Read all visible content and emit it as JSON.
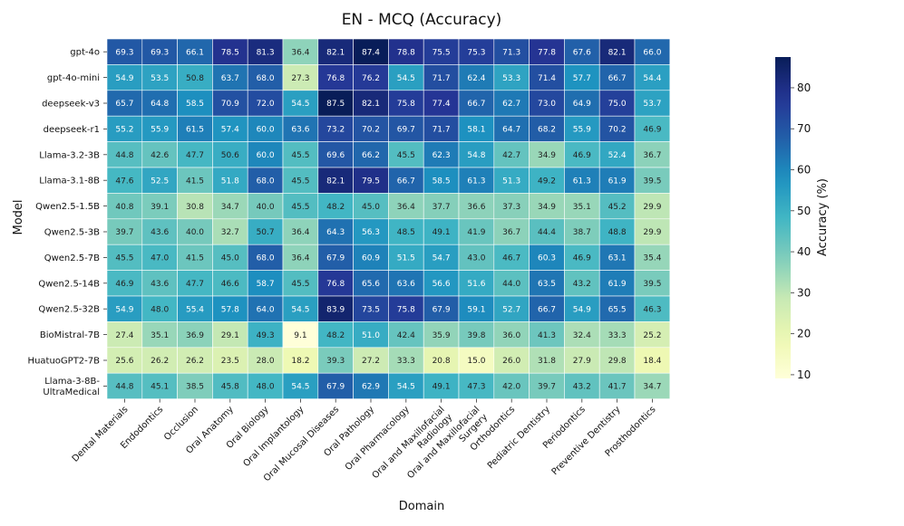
{
  "chart_data": {
    "type": "heatmap",
    "title": "EN - MCQ (Accuracy)",
    "xlabel": "Domain",
    "ylabel": "Model",
    "colorbar_label": "Accuracy (%)",
    "colorbar_range": [
      9.1,
      87.5
    ],
    "colorbar_ticks": [
      10,
      20,
      30,
      40,
      50,
      60,
      70,
      80
    ],
    "colormap": "YlGnBu",
    "rows": [
      "gpt-4o",
      "gpt-4o-mini",
      "deepseek-v3",
      "deepseek-r1",
      "Llama-3.2-3B",
      "Llama-3.1-8B",
      "Qwen2.5-1.5B",
      "Qwen2.5-3B",
      "Qwen2.5-7B",
      "Qwen2.5-14B",
      "Qwen2.5-32B",
      "BioMistral-7B",
      "HuatuoGPT2-7B",
      "Llama-3-8B-UltraMedical"
    ],
    "row_display": [
      [
        "gpt-4o"
      ],
      [
        "gpt-4o-mini"
      ],
      [
        "deepseek-v3"
      ],
      [
        "deepseek-r1"
      ],
      [
        "Llama-3.2-3B"
      ],
      [
        "Llama-3.1-8B"
      ],
      [
        "Qwen2.5-1.5B"
      ],
      [
        "Qwen2.5-3B"
      ],
      [
        "Qwen2.5-7B"
      ],
      [
        "Qwen2.5-14B"
      ],
      [
        "Qwen2.5-32B"
      ],
      [
        "BioMistral-7B"
      ],
      [
        "HuatuoGPT2-7B"
      ],
      [
        "Llama-3-8B-",
        "UltraMedical"
      ]
    ],
    "columns": [
      "Dental Materials",
      "Endodontics",
      "Occlusion",
      "Oral Anatomy",
      "Oral Biology",
      "Oral Implantology",
      "Oral Mucosal Diseases",
      "Oral Pathology",
      "Oral Pharmacology",
      "Oral and Maxillofacial Radiology",
      "Oral and Maxillofacial Surgery",
      "Orthodontics",
      "Pediatric Dentistry",
      "Periodontics",
      "Preventive Dentistry",
      "Prosthodontics"
    ],
    "column_display": [
      [
        "Dental Materials"
      ],
      [
        "Endodontics"
      ],
      [
        "Occlusion"
      ],
      [
        "Oral Anatomy"
      ],
      [
        "Oral Biology"
      ],
      [
        "Oral Implantology"
      ],
      [
        "Oral Mucosal Diseases"
      ],
      [
        "Oral Pathology"
      ],
      [
        "Oral Pharmacology"
      ],
      [
        "Oral and Maxillofacial",
        "Radiology"
      ],
      [
        "Oral and Maxillofacial",
        "Surgery"
      ],
      [
        "Orthodontics"
      ],
      [
        "Pediatric Dentistry"
      ],
      [
        "Periodontics"
      ],
      [
        "Preventive Dentistry"
      ],
      [
        "Prosthodontics"
      ]
    ],
    "values": [
      [
        69.3,
        69.3,
        66.1,
        78.5,
        81.3,
        36.4,
        82.1,
        87.4,
        78.8,
        75.5,
        75.3,
        71.3,
        77.8,
        67.6,
        82.1,
        66.0
      ],
      [
        54.9,
        53.5,
        50.8,
        63.7,
        68.0,
        27.3,
        76.8,
        76.2,
        54.5,
        71.7,
        62.4,
        53.3,
        71.4,
        57.7,
        66.7,
        54.4
      ],
      [
        65.7,
        64.8,
        58.5,
        70.9,
        72.0,
        54.5,
        87.5,
        82.1,
        75.8,
        77.4,
        66.7,
        62.7,
        73.0,
        64.9,
        75.0,
        53.7
      ],
      [
        55.2,
        55.9,
        61.5,
        57.4,
        60.0,
        63.6,
        73.2,
        70.2,
        69.7,
        71.7,
        58.1,
        64.7,
        68.2,
        55.9,
        70.2,
        46.9
      ],
      [
        44.8,
        42.6,
        47.7,
        50.6,
        60.0,
        45.5,
        69.6,
        66.2,
        45.5,
        62.3,
        54.8,
        42.7,
        34.9,
        46.9,
        52.4,
        36.7
      ],
      [
        47.6,
        52.5,
        41.5,
        51.8,
        68.0,
        45.5,
        82.1,
        79.5,
        66.7,
        58.5,
        61.3,
        51.3,
        49.2,
        61.3,
        61.9,
        39.5
      ],
      [
        40.8,
        39.1,
        30.8,
        34.7,
        40.0,
        45.5,
        48.2,
        45.0,
        36.4,
        37.7,
        36.6,
        37.3,
        34.9,
        35.1,
        45.2,
        29.9
      ],
      [
        39.7,
        43.6,
        40.0,
        32.7,
        50.7,
        36.4,
        64.3,
        56.3,
        48.5,
        49.1,
        41.9,
        36.7,
        44.4,
        38.7,
        48.8,
        29.9
      ],
      [
        45.5,
        47.0,
        41.5,
        45.0,
        68.0,
        36.4,
        67.9,
        60.9,
        51.5,
        54.7,
        43.0,
        46.7,
        60.3,
        46.9,
        63.1,
        35.4
      ],
      [
        46.9,
        43.6,
        47.7,
        46.6,
        58.7,
        45.5,
        76.8,
        65.6,
        63.6,
        56.6,
        51.6,
        44.0,
        63.5,
        43.2,
        61.9,
        39.5
      ],
      [
        54.9,
        48.0,
        55.4,
        57.8,
        64.0,
        54.5,
        83.9,
        73.5,
        75.8,
        67.9,
        59.1,
        52.7,
        66.7,
        54.9,
        65.5,
        46.3
      ],
      [
        27.4,
        35.1,
        36.9,
        29.1,
        49.3,
        9.1,
        48.2,
        51.0,
        42.4,
        35.9,
        39.8,
        36.0,
        41.3,
        32.4,
        33.3,
        25.2
      ],
      [
        25.6,
        26.2,
        26.2,
        23.5,
        28.0,
        18.2,
        39.3,
        27.2,
        33.3,
        20.8,
        15.0,
        26.0,
        31.8,
        27.9,
        29.8,
        18.4
      ],
      [
        44.8,
        45.1,
        38.5,
        45.8,
        48.0,
        54.5,
        67.9,
        62.9,
        54.5,
        49.1,
        47.3,
        42.0,
        39.7,
        43.2,
        41.7,
        34.7
      ]
    ]
  }
}
